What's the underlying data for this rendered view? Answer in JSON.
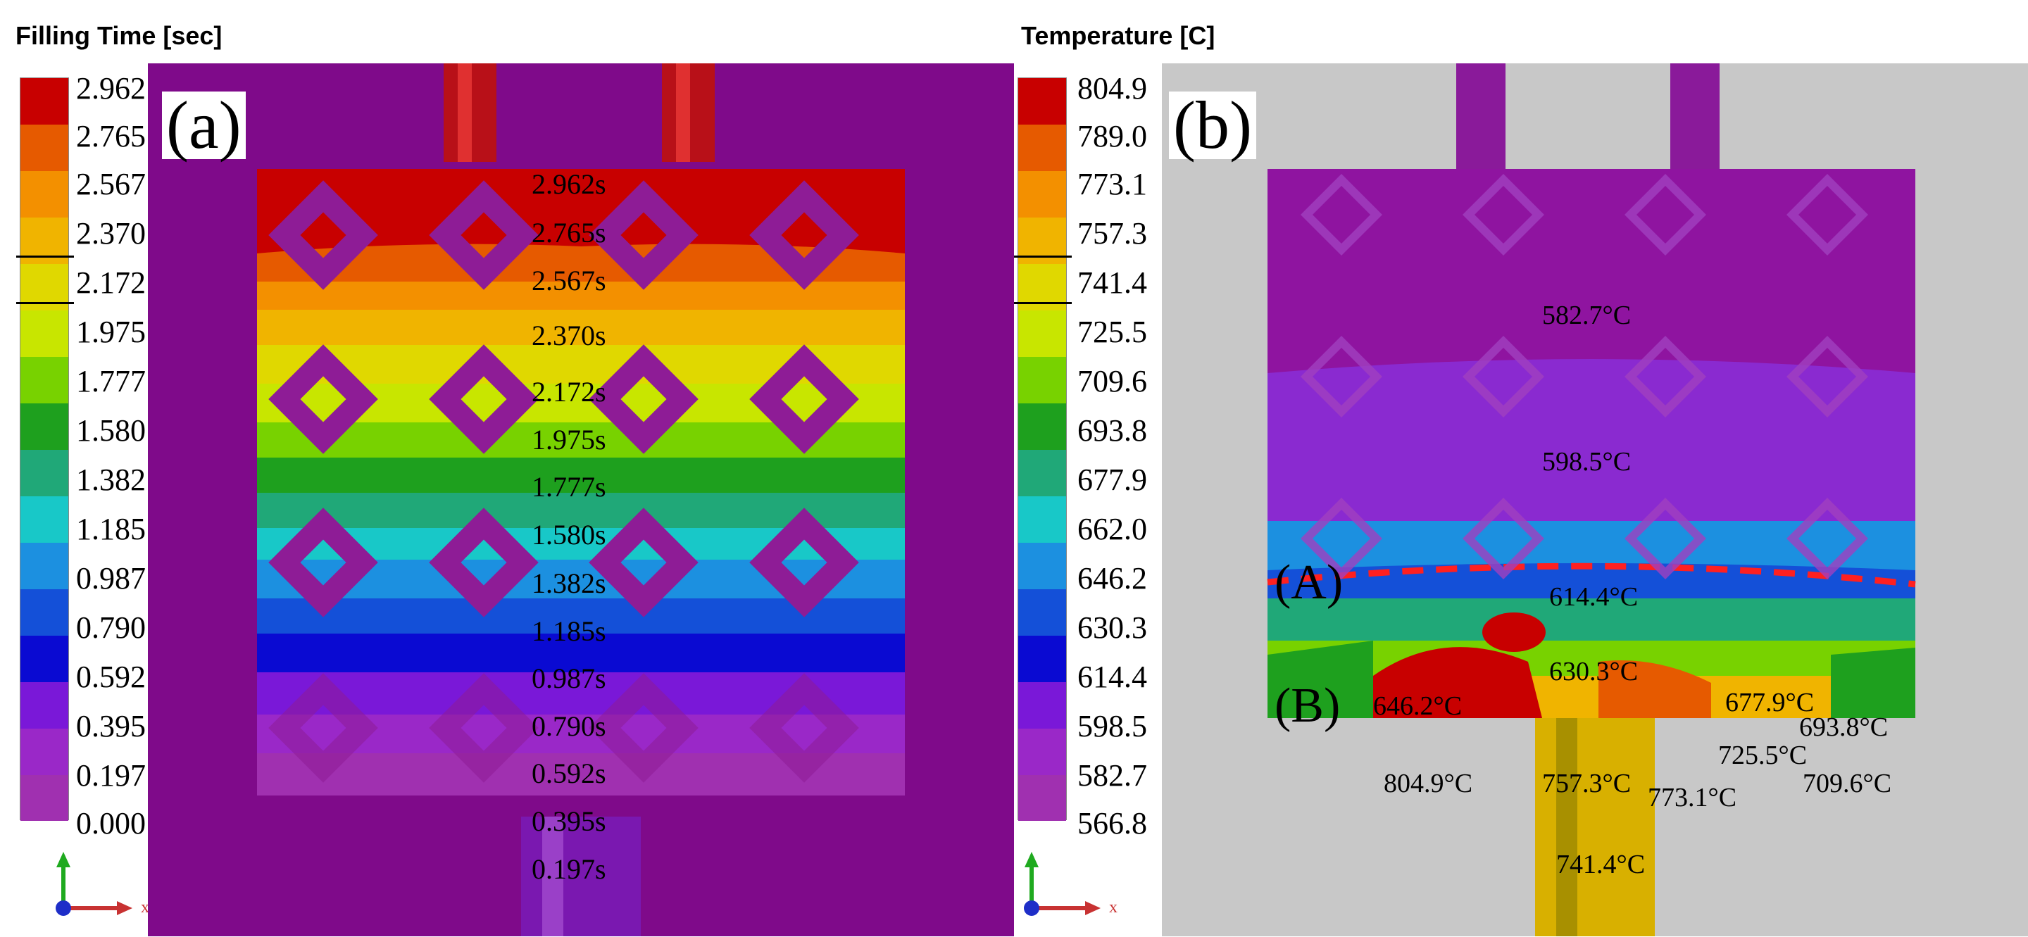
{
  "panel_a": {
    "title": "Filling Time  [sec]",
    "label": "(a)",
    "ticks": [
      "2.962",
      "2.765",
      "2.567",
      "2.370",
      "2.172",
      "1.975",
      "1.777",
      "1.580",
      "1.382",
      "1.185",
      "0.987",
      "0.790",
      "0.592",
      "0.395",
      "0.197",
      "0.000"
    ],
    "time_labels": [
      "2.962s",
      "2.765s",
      "2.567s",
      "2.370s",
      "2.172s",
      "1.975s",
      "1.777s",
      "1.580s",
      "1.382s",
      "1.185s",
      "0.987s",
      "0.790s",
      "0.592s",
      "0.395s",
      "0.197s"
    ]
  },
  "panel_b": {
    "title": "Temperature  [C]",
    "label": "(b)",
    "ticks": [
      "804.9",
      "789.0",
      "773.1",
      "757.3",
      "741.4",
      "725.5",
      "709.6",
      "693.8",
      "677.9",
      "662.0",
      "646.2",
      "630.3",
      "614.4",
      "598.5",
      "582.7",
      "566.8"
    ],
    "temp_labels": {
      "t1": "582.7°C",
      "t2": "598.5°C",
      "t3": "614.4°C",
      "t4": "630.3°C",
      "t5": "646.2°C",
      "t6": "677.9°C",
      "t7": "693.8°C",
      "t8": "725.5°C",
      "t9": "804.9°C",
      "t10": "757.3°C",
      "t11": "773.1°C",
      "t12": "709.6°C",
      "t13": "741.4°C"
    },
    "region_a": "(A)",
    "region_b": "(B)"
  },
  "axis_x_letter": "x",
  "colors": {
    "scale": [
      "#c80000",
      "#e65a00",
      "#f39000",
      "#f0b400",
      "#e0d800",
      "#c8e600",
      "#78d200",
      "#1ea01e",
      "#20a878",
      "#18c8c8",
      "#1c90e0",
      "#1450d8",
      "#0a0ad2",
      "#7a18d8",
      "#9a28c8",
      "#a030b0"
    ],
    "mold": "#7f0a8a",
    "background_b": "#c8c8c8"
  }
}
